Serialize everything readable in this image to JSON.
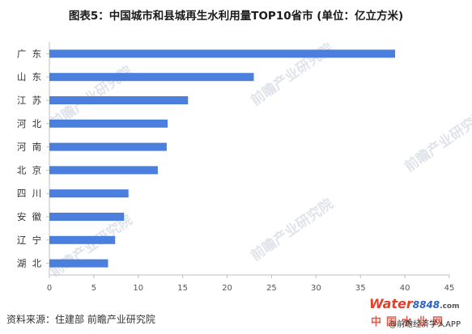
{
  "title": "图表5：中国城市和县城再生水利用量TOP10省市 (单位：亿立方米)",
  "source": "资料来源：住建部 前瞻产业研究院",
  "credit": "@前瞻经济学人APP",
  "watermark": "前瞻产业研究院",
  "brand": {
    "water": "Water",
    "num": "8848",
    "com": ".com",
    "cn": "中国水业网"
  },
  "colors": {
    "bar": "#4a7fdd",
    "axis": "#bfbfbf"
  },
  "chart_data": {
    "type": "bar",
    "orientation": "horizontal",
    "title": "图表5：中国城市和县城再生水利用量TOP10省市 (单位：亿立方米)",
    "categories": [
      "广  东",
      "山  东",
      "江  苏",
      "河  北",
      "河  南",
      "北  京",
      "四  川",
      "安  徽",
      "辽  宁",
      "湖  北"
    ],
    "values": [
      38.9,
      23.0,
      15.6,
      13.3,
      13.2,
      12.2,
      8.9,
      8.4,
      7.4,
      6.6
    ],
    "xlim": [
      0,
      45
    ],
    "xticks": [
      0,
      5,
      10,
      15,
      20,
      25,
      30,
      35,
      40,
      45
    ],
    "grid": false,
    "legend": "none"
  }
}
